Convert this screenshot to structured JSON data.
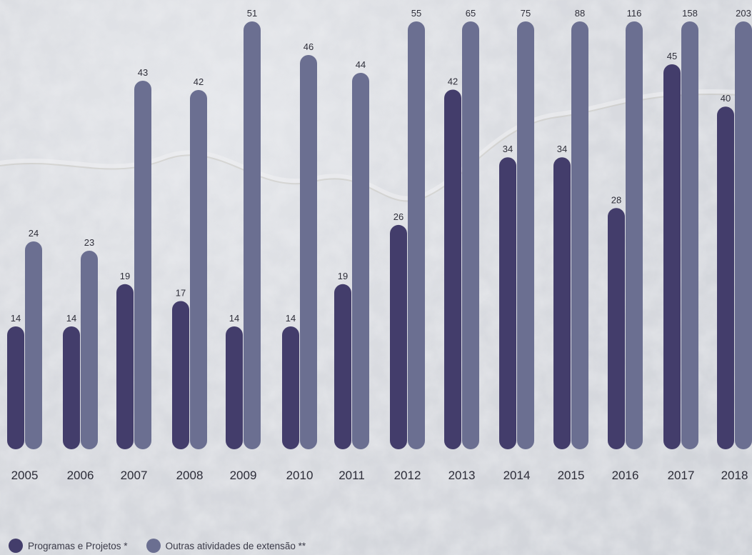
{
  "colors": {
    "series1": "#433d6b",
    "series2": "#6b6f91",
    "label": "#2f2f3a",
    "tick": "#2c2c38"
  },
  "chart_data": {
    "type": "bar",
    "title": "",
    "xlabel": "",
    "ylabel": "",
    "categories": [
      "2005",
      "2006",
      "2007",
      "2008",
      "2009",
      "2010",
      "2011",
      "2012",
      "2013",
      "2014",
      "2015",
      "2016",
      "2017",
      "2018"
    ],
    "legend_position": "bottom-left",
    "grid": false,
    "series": [
      {
        "name": "Programas e Projetos *",
        "values": [
          14,
          14,
          19,
          17,
          14,
          14,
          19,
          26,
          42,
          34,
          34,
          28,
          45,
          40
        ]
      },
      {
        "name": "Outras atividades de extensão **",
        "values": [
          24,
          23,
          43,
          42,
          51,
          46,
          44,
          55,
          65,
          75,
          88,
          116,
          158,
          203
        ]
      }
    ]
  }
}
